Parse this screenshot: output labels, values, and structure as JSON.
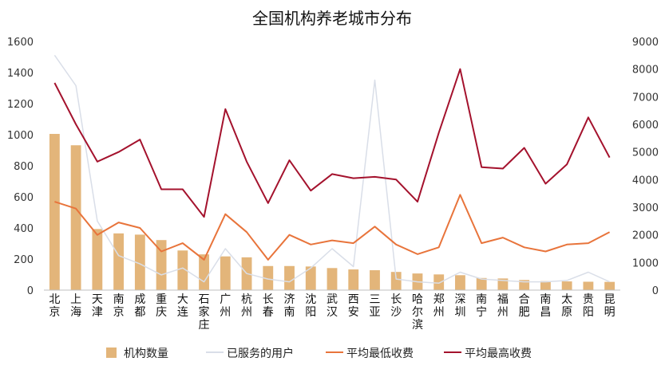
{
  "chart_data": {
    "type": "bar",
    "title": "全国机构养老城市分布",
    "categories": [
      "北京",
      "上海",
      "天津",
      "南京",
      "成都",
      "重庆",
      "大连",
      "石家庄",
      "广州",
      "杭州",
      "长春",
      "济南",
      "沈阳",
      "武汉",
      "西安",
      "三亚",
      "长沙",
      "哈尔滨",
      "郑州",
      "深圳",
      "南宁",
      "福州",
      "合肥",
      "南昌",
      "太原",
      "贵阳",
      "昆明"
    ],
    "y_left": {
      "ylim": [
        0,
        1600
      ],
      "ticks": [
        "0",
        "200",
        "400",
        "600",
        "800",
        "1000",
        "1200",
        "1400",
        "1600"
      ]
    },
    "y_right": {
      "ylim": [
        0,
        9000
      ],
      "ticks": [
        "0",
        "1000",
        "2000",
        "3000",
        "4000",
        "5000",
        "6000",
        "7000",
        "8000",
        "9000"
      ]
    },
    "series": [
      {
        "name": "机构数量",
        "kind": "bar",
        "axis": "left",
        "color": "#e3b57a",
        "values": [
          1005,
          932,
          393,
          365,
          357,
          322,
          255,
          230,
          217,
          211,
          155,
          155,
          152,
          142,
          133,
          128,
          117,
          107,
          101,
          96,
          78,
          75,
          65,
          58,
          56,
          54,
          53
        ]
      },
      {
        "name": "已服务的用户",
        "kind": "line",
        "axis": "right",
        "color": "#d9dee8",
        "values": [
          8500,
          7400,
          2500,
          1250,
          950,
          550,
          800,
          300,
          1500,
          600,
          400,
          300,
          800,
          1500,
          850,
          7600,
          400,
          300,
          250,
          650,
          400,
          350,
          300,
          300,
          350,
          650,
          300
        ]
      },
      {
        "name": "平均最低收费",
        "kind": "line",
        "axis": "right",
        "color": "#e8743b",
        "values": [
          3200,
          2950,
          2000,
          2450,
          2250,
          1400,
          1700,
          1100,
          2750,
          2100,
          1100,
          2000,
          1650,
          1800,
          1700,
          2300,
          1650,
          1300,
          1550,
          3450,
          1700,
          1900,
          1550,
          1400,
          1650,
          1700,
          2100
        ]
      },
      {
        "name": "平均最高收费",
        "kind": "line",
        "axis": "right",
        "color": "#a4122d",
        "values": [
          7500,
          6000,
          4650,
          5000,
          5450,
          3650,
          3650,
          2650,
          6550,
          4650,
          3150,
          4700,
          3600,
          4200,
          4050,
          4100,
          4000,
          3200,
          5700,
          8000,
          4450,
          4400,
          5150,
          3850,
          4550,
          6250,
          4800
        ]
      }
    ],
    "legend": "bottom"
  }
}
